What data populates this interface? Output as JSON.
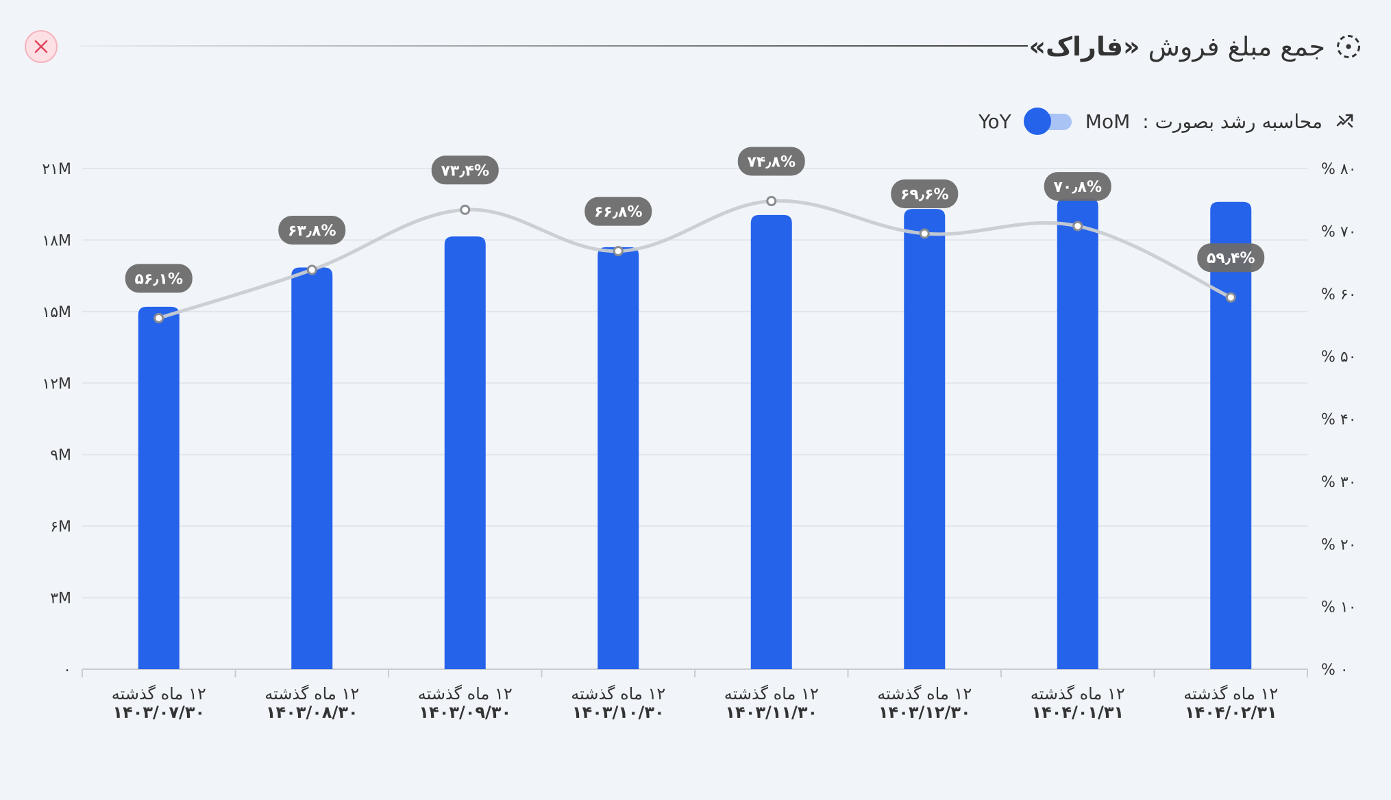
{
  "header": {
    "title_prefix": "جمع مبلغ فروش",
    "title_brand": "«فاراک»",
    "close_icon": "close-icon",
    "title_icon": "dashed-circle-icon"
  },
  "growth": {
    "label": "محاسبه رشد بصورت :",
    "mom": "MoM",
    "yoy": "YoY",
    "icon": "trend-arrow-icon",
    "selected": "YoY"
  },
  "colors": {
    "bar": "#2563eb",
    "line": "#c9ccd1",
    "label_bg": "#6b6b6b",
    "grid": "#e1e5ec"
  },
  "chart_data": {
    "type": "bar",
    "categories": [
      [
        "۱۲ ماه گذشته",
        "۱۴۰۳/۰۷/۳۰"
      ],
      [
        "۱۲ ماه گذشته",
        "۱۴۰۳/۰۸/۳۰"
      ],
      [
        "۱۲ ماه گذشته",
        "۱۴۰۳/۰۹/۳۰"
      ],
      [
        "۱۲ ماه گذشته",
        "۱۴۰۳/۱۰/۳۰"
      ],
      [
        "۱۲ ماه گذشته",
        "۱۴۰۳/۱۱/۳۰"
      ],
      [
        "۱۲ ماه گذشته",
        "۱۴۰۳/۱۲/۳۰"
      ],
      [
        "۱۲ ماه گذشته",
        "۱۴۰۴/۰۱/۳۱"
      ],
      [
        "۱۲ ماه گذشته",
        "۱۴۰۴/۰۲/۳۱"
      ]
    ],
    "series": [
      {
        "type": "bar",
        "axis": "left",
        "values": [
          15200000,
          16850000,
          18150000,
          17700000,
          19050000,
          19300000,
          19750000,
          19600000
        ]
      },
      {
        "type": "line",
        "axis": "right",
        "smooth": true,
        "values": [
          56.1,
          63.8,
          73.4,
          66.8,
          74.8,
          69.6,
          70.8,
          59.4
        ],
        "labels": [
          "۵۶٫۱%",
          "۶۳٫۸%",
          "۷۳٫۴%",
          "۶۶٫۸%",
          "۷۴٫۸%",
          "۶۹٫۶%",
          "۷۰٫۸%",
          "۵۹٫۴%"
        ]
      }
    ],
    "y_left": {
      "min": 0,
      "max": 21000000,
      "ticks": [
        0,
        3000000,
        6000000,
        9000000,
        12000000,
        15000000,
        18000000,
        21000000
      ],
      "tick_labels": [
        "۰",
        "۳M",
        "۶M",
        "۹M",
        "۱۲M",
        "۱۵M",
        "۱۸M",
        "۲۱M"
      ]
    },
    "y_right": {
      "min": 0,
      "max": 80,
      "ticks": [
        0,
        10,
        20,
        30,
        40,
        50,
        60,
        70,
        80
      ],
      "tick_labels": [
        "% ۰",
        "% ۱۰",
        "% ۲۰",
        "% ۳۰",
        "% ۴۰",
        "% ۵۰",
        "% ۶۰",
        "% ۷۰",
        "% ۸۰"
      ]
    },
    "grid": true,
    "legend": "none"
  }
}
